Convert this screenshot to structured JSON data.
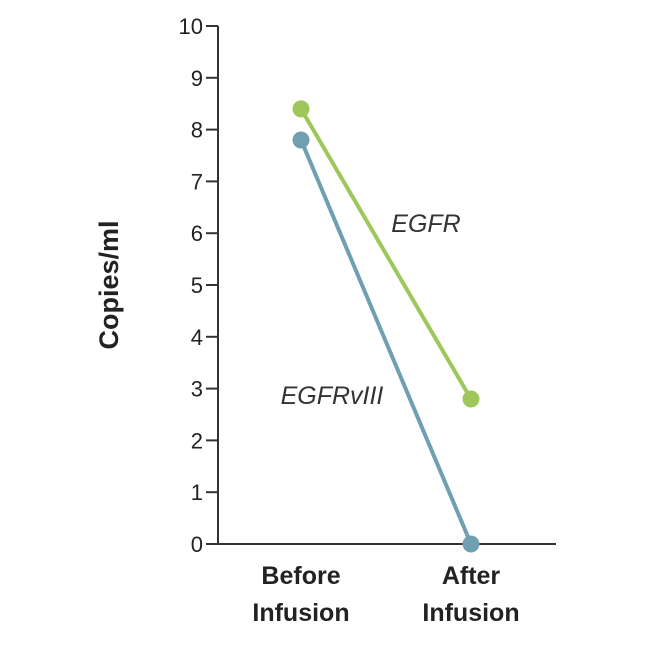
{
  "chart_data": {
    "type": "line",
    "title": "",
    "ylabel": "Copies/ml",
    "xlabel": "",
    "categories": [
      [
        "Before",
        "Infusion"
      ],
      [
        "After",
        "Infusion"
      ]
    ],
    "ylim": [
      0,
      10
    ],
    "yticks": [
      0,
      1,
      2,
      3,
      4,
      5,
      6,
      7,
      8,
      9,
      10
    ],
    "grid": false,
    "series": [
      {
        "name": "EGFR",
        "values": [
          8.4,
          2.8
        ],
        "color": "#9dc75a"
      },
      {
        "name": "EGFRvIII",
        "values": [
          7.8,
          0
        ],
        "color": "#6f9fb1"
      }
    ]
  }
}
